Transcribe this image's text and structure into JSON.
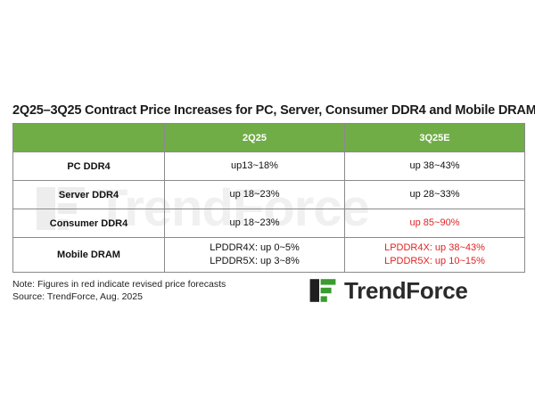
{
  "title": "2Q25–3Q25 Contract Price Increases for PC, Server, Consumer DDR4 and Mobile DRAM",
  "table": {
    "headers": [
      "",
      "2Q25",
      "3Q25E"
    ],
    "rows": [
      {
        "label": "PC DDR4",
        "q2": [
          "up13~18%"
        ],
        "q3": [
          "up 38~43%"
        ],
        "q3_revised": false
      },
      {
        "label": "Server DDR4",
        "q2": [
          "up 18~23%"
        ],
        "q3": [
          "up 28~33%"
        ],
        "q3_revised": false
      },
      {
        "label": "Consumer DDR4",
        "q2": [
          "up 18~23%"
        ],
        "q3": [
          "up 85~90%"
        ],
        "q3_revised": true
      },
      {
        "label": "Mobile DRAM",
        "q2": [
          "LPDDR4X: up 0~5%",
          "LPDDR5X: up 3~8%"
        ],
        "q3": [
          "LPDDR4X: up 38~43%",
          "LPDDR5X: up 10~15%"
        ],
        "q3_revised": true
      }
    ]
  },
  "notes": {
    "note": "Note: Figures in red indicate revised price forecasts",
    "source": "Source: TrendForce, Aug. 2025"
  },
  "logo": {
    "brand": "TrendForce",
    "icon": "trendforce-logo-mark"
  },
  "colors": {
    "header_green": "#70ad47",
    "revised_red": "#e02424",
    "logo_green": "#3a9b2e"
  }
}
